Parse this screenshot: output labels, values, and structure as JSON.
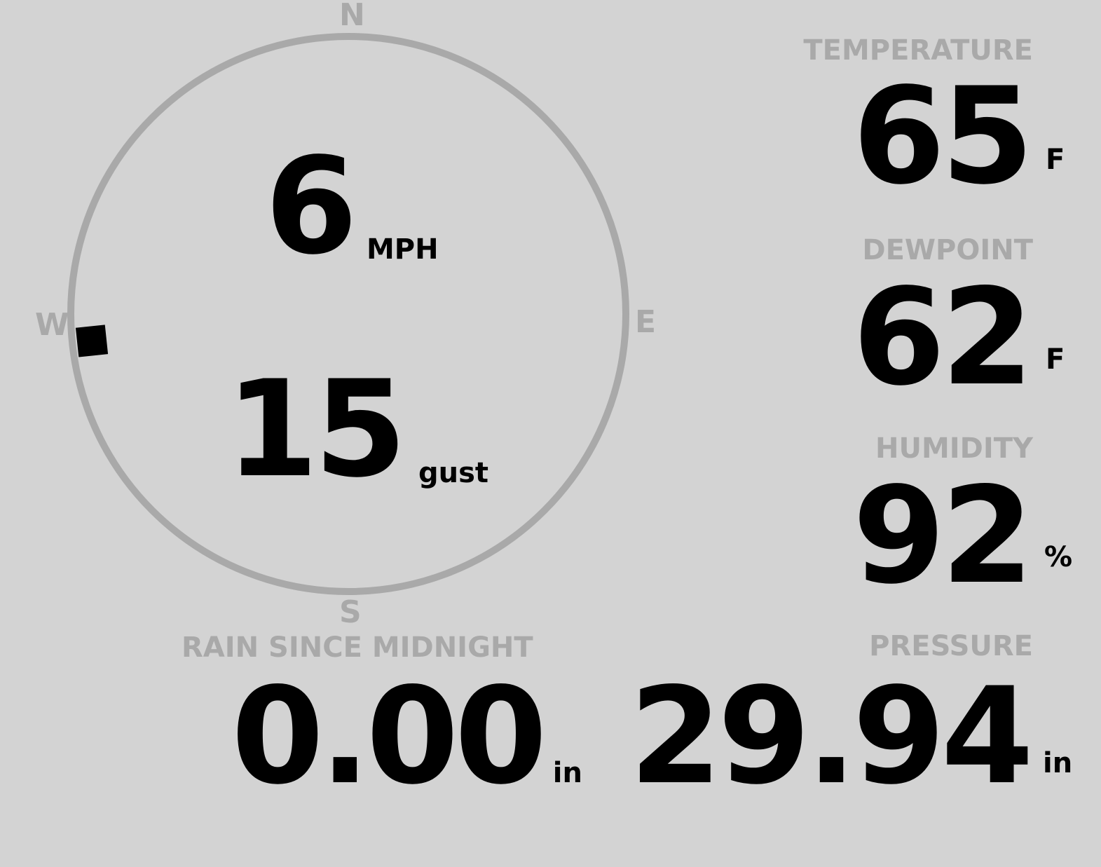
{
  "wind": {
    "speed": "6",
    "speed_unit": "MPH",
    "gust": "15",
    "gust_unit": "gust",
    "direction_deg": 264,
    "compass": {
      "n": "N",
      "e": "E",
      "s": "S",
      "w": "W"
    }
  },
  "temperature": {
    "label": "TEMPERATURE",
    "value": "65",
    "unit": "F"
  },
  "dewpoint": {
    "label": "DEWPOINT",
    "value": "62",
    "unit": "F"
  },
  "humidity": {
    "label": "HUMIDITY",
    "value": "92",
    "unit": "%"
  },
  "rain": {
    "label": "RAIN SINCE MIDNIGHT",
    "value": "0.00",
    "unit": "in"
  },
  "pressure": {
    "label": "PRESSURE",
    "value": "29.94",
    "unit": "in"
  },
  "colors": {
    "background": "#d3d3d3",
    "label": "#a9a9a9",
    "value": "#000000"
  }
}
